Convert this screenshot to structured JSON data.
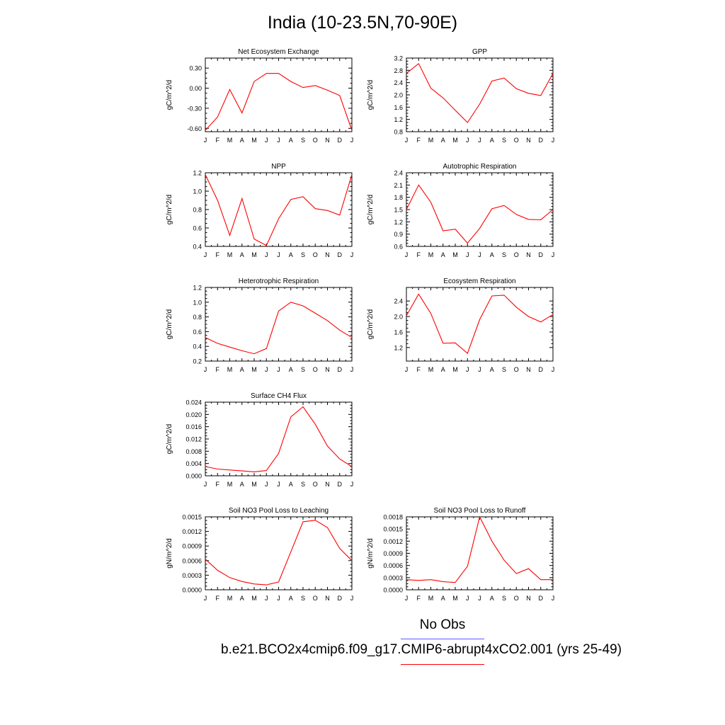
{
  "figure": {
    "title": "India (10-23.5N,70-90E)",
    "legend": [
      {
        "label": "No Obs",
        "color": "#5b5bff"
      },
      {
        "label": "b.e21.BCO2x4cmip6.f09_g17.CMIP6-abrupt4xCO2.001 (yrs 25-49)",
        "color": "#ff0000"
      }
    ]
  },
  "chart_data": [
    {
      "type": "line",
      "title": "Net Ecosystem Exchange",
      "ylabel": "gC/m^2/d",
      "categories": [
        "J",
        "F",
        "M",
        "A",
        "M",
        "J",
        "J",
        "A",
        "S",
        "O",
        "N",
        "D",
        "J"
      ],
      "ylim": [
        -0.65,
        0.45
      ],
      "yticks": [
        "0.30",
        "0.00",
        "-0.30",
        "-0.60"
      ],
      "ytick_values": [
        0.3,
        0.0,
        -0.3,
        -0.6
      ],
      "series": [
        {
          "color": "#ff0000",
          "values": [
            -0.63,
            -0.43,
            -0.02,
            -0.37,
            0.1,
            0.22,
            0.22,
            0.1,
            0.01,
            0.04,
            -0.03,
            -0.11,
            -0.63
          ]
        }
      ]
    },
    {
      "type": "line",
      "title": "GPP",
      "ylabel": "gC/m^2/d",
      "categories": [
        "J",
        "F",
        "M",
        "A",
        "M",
        "J",
        "J",
        "A",
        "S",
        "O",
        "N",
        "D",
        "J"
      ],
      "ylim": [
        0.8,
        3.2
      ],
      "yticks": [
        "0.8",
        "1.2",
        "1.6",
        "2.0",
        "2.4",
        "2.8",
        "3.2"
      ],
      "ytick_values": [
        0.8,
        1.2,
        1.6,
        2.0,
        2.4,
        2.8,
        3.2
      ],
      "series": [
        {
          "color": "#ff0000",
          "values": [
            2.7,
            3.02,
            2.22,
            1.9,
            1.5,
            1.1,
            1.7,
            2.45,
            2.55,
            2.2,
            2.05,
            1.98,
            2.7
          ]
        }
      ]
    },
    {
      "type": "line",
      "title": "NPP",
      "ylabel": "gC/m^2/d",
      "categories": [
        "J",
        "F",
        "M",
        "A",
        "M",
        "J",
        "J",
        "A",
        "S",
        "O",
        "N",
        "D",
        "J"
      ],
      "ylim": [
        0.4,
        1.2
      ],
      "yticks": [
        "0.4",
        "0.6",
        "0.8",
        "1.0",
        "1.2"
      ],
      "ytick_values": [
        0.4,
        0.6,
        0.8,
        1.0,
        1.2
      ],
      "series": [
        {
          "color": "#ff0000",
          "values": [
            1.18,
            0.9,
            0.52,
            0.92,
            0.48,
            0.41,
            0.7,
            0.91,
            0.94,
            0.81,
            0.79,
            0.74,
            1.18
          ]
        }
      ]
    },
    {
      "type": "line",
      "title": "Autotrophic Respiration",
      "ylabel": "gC/m^2/d",
      "categories": [
        "J",
        "F",
        "M",
        "A",
        "M",
        "J",
        "J",
        "A",
        "S",
        "O",
        "N",
        "D",
        "J"
      ],
      "ylim": [
        0.6,
        2.4
      ],
      "yticks": [
        "0.6",
        "0.9",
        "1.2",
        "1.5",
        "1.8",
        "2.1",
        "2.4"
      ],
      "ytick_values": [
        0.6,
        0.9,
        1.2,
        1.5,
        1.8,
        2.1,
        2.4
      ],
      "series": [
        {
          "color": "#ff0000",
          "values": [
            1.5,
            2.1,
            1.68,
            0.98,
            1.02,
            0.68,
            1.04,
            1.52,
            1.6,
            1.38,
            1.26,
            1.25,
            1.5
          ]
        }
      ]
    },
    {
      "type": "line",
      "title": "Heterotrophic Respiration",
      "ylabel": "gC/m^2/d",
      "categories": [
        "J",
        "F",
        "M",
        "A",
        "M",
        "J",
        "J",
        "A",
        "S",
        "O",
        "N",
        "D",
        "J"
      ],
      "ylim": [
        0.2,
        1.2
      ],
      "yticks": [
        "0.2",
        "0.4",
        "0.6",
        "0.8",
        "1.0",
        "1.2"
      ],
      "ytick_values": [
        0.2,
        0.4,
        0.6,
        0.8,
        1.0,
        1.2
      ],
      "series": [
        {
          "color": "#ff0000",
          "values": [
            0.52,
            0.44,
            0.39,
            0.34,
            0.3,
            0.37,
            0.88,
            1.0,
            0.95,
            0.85,
            0.75,
            0.62,
            0.52
          ]
        }
      ]
    },
    {
      "type": "line",
      "title": "Ecosystem Respiration",
      "ylabel": "gC/m^2/d",
      "categories": [
        "J",
        "F",
        "M",
        "A",
        "M",
        "J",
        "J",
        "A",
        "S",
        "O",
        "N",
        "D",
        "J"
      ],
      "ylim": [
        0.85,
        2.75
      ],
      "yticks": [
        "1.2",
        "1.6",
        "2.0",
        "2.4"
      ],
      "ytick_values": [
        1.2,
        1.6,
        2.0,
        2.4
      ],
      "series": [
        {
          "color": "#ff0000",
          "values": [
            2.02,
            2.58,
            2.08,
            1.31,
            1.32,
            1.05,
            1.92,
            2.53,
            2.55,
            2.24,
            2.0,
            1.86,
            2.05
          ]
        }
      ]
    },
    {
      "type": "line",
      "title": "Surface CH4 Flux",
      "ylabel": "gC/m^2/d",
      "categories": [
        "J",
        "F",
        "M",
        "A",
        "M",
        "J",
        "J",
        "A",
        "S",
        "O",
        "N",
        "D",
        "J"
      ],
      "ylim": [
        0.0,
        0.024
      ],
      "yticks": [
        "0.000",
        "0.004",
        "0.008",
        "0.012",
        "0.016",
        "0.020",
        "0.024"
      ],
      "ytick_values": [
        0.0,
        0.004,
        0.008,
        0.012,
        0.016,
        0.02,
        0.024
      ],
      "series": [
        {
          "color": "#ff0000",
          "values": [
            0.003,
            0.0022,
            0.0019,
            0.0016,
            0.0013,
            0.0017,
            0.0073,
            0.0192,
            0.0225,
            0.0168,
            0.0097,
            0.0055,
            0.003
          ]
        }
      ]
    },
    {
      "type": "line",
      "title": "Soil NO3 Pool Loss to Leaching",
      "ylabel": "gN/m^2/d",
      "categories": [
        "J",
        "F",
        "M",
        "A",
        "M",
        "J",
        "J",
        "A",
        "S",
        "O",
        "N",
        "D",
        "J"
      ],
      "ylim": [
        0.0,
        0.0015
      ],
      "yticks": [
        "0.0000",
        "0.0003",
        "0.0006",
        "0.0009",
        "0.0012",
        "0.0015"
      ],
      "ytick_values": [
        0.0,
        0.0003,
        0.0006,
        0.0009,
        0.0012,
        0.0015
      ],
      "series": [
        {
          "color": "#ff0000",
          "values": [
            0.00063,
            0.0004,
            0.00025,
            0.00017,
            0.00012,
            0.0001,
            0.00016,
            0.00078,
            0.0014,
            0.00143,
            0.00128,
            0.00085,
            0.0006
          ]
        }
      ]
    },
    {
      "type": "line",
      "title": "Soil NO3 Pool Loss to Runoff",
      "ylabel": "gN/m^2/d",
      "categories": [
        "J",
        "F",
        "M",
        "A",
        "M",
        "J",
        "J",
        "A",
        "S",
        "O",
        "N",
        "D",
        "J"
      ],
      "ylim": [
        0.0,
        0.0018
      ],
      "yticks": [
        "0.0000",
        "0.0003",
        "0.0006",
        "0.0009",
        "0.0012",
        "0.0015",
        "0.0018"
      ],
      "ytick_values": [
        0.0,
        0.0003,
        0.0006,
        0.0009,
        0.0012,
        0.0015,
        0.0018
      ],
      "series": [
        {
          "color": "#ff0000",
          "values": [
            0.00025,
            0.00023,
            0.00025,
            0.0002,
            0.00018,
            0.00058,
            0.0018,
            0.0012,
            0.00073,
            0.0004,
            0.00052,
            0.00025,
            0.00025
          ]
        }
      ]
    }
  ]
}
